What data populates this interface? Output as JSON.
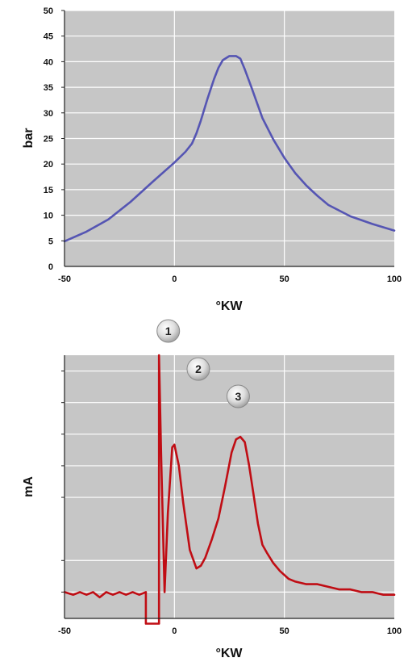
{
  "chart_data": [
    {
      "type": "line",
      "title": "",
      "xlabel": "°KW",
      "ylabel": "bar",
      "xlim": [
        -50,
        100
      ],
      "ylim": [
        0,
        50
      ],
      "x_ticks": [
        "-50",
        "0",
        "50",
        "100"
      ],
      "y_ticks": [
        "0",
        "5",
        "10",
        "15",
        "20",
        "25",
        "30",
        "35",
        "40",
        "45",
        "50"
      ],
      "grid": true,
      "legend": "none",
      "colors": {
        "plot_bg": "#c6c6c6",
        "grid": "#ffffff",
        "line": "#5555b3"
      },
      "series": [
        {
          "x": [
            -50,
            -40,
            -30,
            -20,
            -10,
            0,
            5,
            8,
            10,
            12,
            15,
            18,
            20,
            22,
            25,
            28,
            30,
            32,
            35,
            40,
            45,
            50,
            55,
            60,
            65,
            70,
            80,
            90,
            100
          ],
          "values": [
            4.9,
            6.8,
            9.2,
            12.6,
            16.5,
            20.3,
            22.4,
            24.0,
            26.0,
            28.5,
            32.7,
            36.6,
            38.8,
            40.3,
            41.1,
            41.1,
            40.6,
            38.5,
            35.0,
            29.0,
            24.8,
            21.2,
            18.2,
            15.8,
            13.8,
            12.0,
            9.8,
            8.3,
            7.0
          ]
        }
      ]
    },
    {
      "type": "line",
      "title": "",
      "xlabel": "°KW",
      "ylabel": "mA",
      "xlim": [
        -50,
        100
      ],
      "ylim": [
        0,
        10
      ],
      "y_tick_labels_shown": false,
      "x_ticks": [
        "-50",
        "0",
        "50",
        "100"
      ],
      "grid": true,
      "legend": "none",
      "colors": {
        "plot_bg": "#c6c6c6",
        "grid": "#ffffff",
        "line": "#c00d14"
      },
      "annotations": [
        {
          "label": "1",
          "x": -5,
          "y": 10.0
        },
        {
          "label": "2",
          "x": 5,
          "y": 8.8
        },
        {
          "label": "3",
          "x": 29,
          "y": 7.7
        }
      ],
      "series": [
        {
          "x": [
            -50,
            -46,
            -43,
            -40,
            -37,
            -34,
            -31,
            -28,
            -25,
            -22,
            -19,
            -16,
            -13,
            -13,
            -7,
            -7,
            -6,
            -4.5,
            -3,
            -1,
            0,
            2,
            4,
            7,
            10,
            12,
            14,
            17,
            20,
            23,
            26,
            28,
            30,
            32,
            34,
            36,
            38,
            40,
            42,
            45,
            48,
            52,
            55,
            60,
            65,
            70,
            75,
            80,
            85,
            90,
            95,
            100
          ],
          "values": [
            1.0,
            0.9,
            1.0,
            0.9,
            1.0,
            0.8,
            1.0,
            0.9,
            1.0,
            0.9,
            1.0,
            0.9,
            1.0,
            -0.2,
            -0.2,
            10.0,
            6.0,
            1.0,
            4.0,
            6.5,
            6.6,
            5.8,
            4.4,
            2.6,
            1.9,
            2.0,
            2.3,
            3.0,
            3.8,
            5.0,
            6.3,
            6.8,
            6.9,
            6.7,
            5.8,
            4.7,
            3.6,
            2.8,
            2.5,
            2.1,
            1.8,
            1.5,
            1.4,
            1.3,
            1.3,
            1.2,
            1.1,
            1.1,
            1.0,
            1.0,
            0.9,
            0.9
          ]
        }
      ]
    }
  ]
}
